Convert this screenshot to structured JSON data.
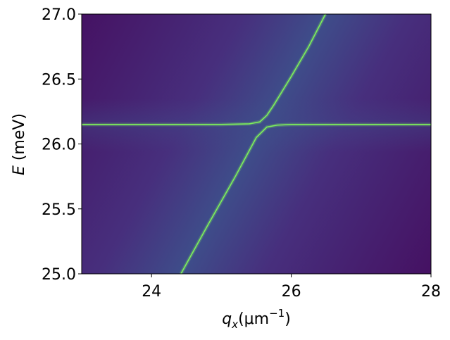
{
  "chart_data": {
    "type": "line",
    "xlabel": {
      "symbol": "q",
      "subscript": "x",
      "unit_open": "(μm",
      "superscript": "−1",
      "unit_close": ")"
    },
    "ylabel": {
      "symbol": "E",
      "unit": " (meV)"
    },
    "xlim": [
      23,
      28
    ],
    "xticks": [
      24,
      26,
      28
    ],
    "ylim": [
      25,
      27
    ],
    "yticks": [
      {
        "value": 25,
        "label": "25.0"
      },
      25.5,
      {
        "value": 26,
        "label": "26.0"
      },
      26.5,
      {
        "value": 27,
        "label": "27.0"
      }
    ],
    "series": [
      {
        "color": "#7ef05a",
        "x": [
          23,
          24,
          25,
          25.4,
          25.55,
          25.65,
          25.75,
          26,
          26.25,
          26.49
        ],
        "values": [
          26.15,
          26.15,
          26.15,
          26.155,
          26.17,
          26.22,
          26.3,
          26.52,
          26.75,
          27.0
        ]
      },
      {
        "color": "#7ef05a",
        "x": [
          24.42,
          24.8,
          25.2,
          25.5,
          25.65,
          25.8,
          26,
          27,
          28
        ],
        "values": [
          25.0,
          25.37,
          25.75,
          26.05,
          26.13,
          26.145,
          26.15,
          26.15,
          26.15
        ]
      }
    ]
  }
}
